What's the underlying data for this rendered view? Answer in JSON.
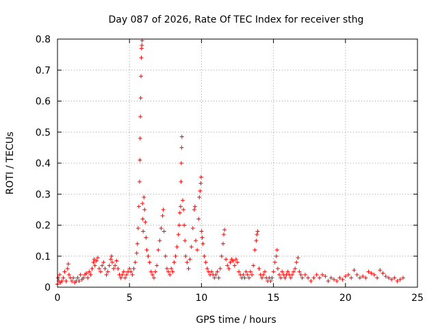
{
  "chart_data": {
    "type": "scatter",
    "title": "Day 087 of 2026, Rate Of TEC Index for receiver sthg",
    "xlabel": "GPS time / hours",
    "ylabel": "ROTI / TECUs",
    "xlim": [
      0,
      25
    ],
    "ylim": [
      0,
      0.8
    ],
    "xticks": [
      "0",
      "5",
      "10",
      "15",
      "20",
      "25"
    ],
    "yticks": [
      "0",
      "0.1",
      "0.2",
      "0.3",
      "0.4",
      "0.5",
      "0.6",
      "0.7",
      "0.8"
    ],
    "grid": true,
    "marker": "+",
    "color": "#ff0000",
    "series": [
      {
        "points": [
          [
            0.0,
            0.01
          ],
          [
            0.05,
            0.03
          ],
          [
            0.1,
            0.02
          ],
          [
            0.15,
            0.04
          ],
          [
            0.2,
            0.015
          ],
          [
            0.3,
            0.02
          ],
          [
            0.4,
            0.03
          ],
          [
            0.5,
            0.05
          ],
          [
            0.6,
            0.02
          ],
          [
            0.7,
            0.06
          ],
          [
            0.75,
            0.075
          ],
          [
            0.8,
            0.04
          ],
          [
            0.9,
            0.03
          ],
          [
            1.0,
            0.02
          ],
          [
            1.1,
            0.03
          ],
          [
            1.2,
            0.015
          ],
          [
            1.3,
            0.02
          ],
          [
            1.4,
            0.03
          ],
          [
            1.5,
            0.02
          ],
          [
            1.6,
            0.04
          ],
          [
            1.7,
            0.025
          ],
          [
            1.8,
            0.03
          ],
          [
            1.9,
            0.04
          ],
          [
            2.0,
            0.045
          ],
          [
            2.1,
            0.03
          ],
          [
            2.2,
            0.05
          ],
          [
            2.3,
            0.04
          ],
          [
            2.4,
            0.06
          ],
          [
            2.5,
            0.08
          ],
          [
            2.55,
            0.09
          ],
          [
            2.6,
            0.07
          ],
          [
            2.7,
            0.085
          ],
          [
            2.8,
            0.095
          ],
          [
            2.9,
            0.06
          ],
          [
            3.0,
            0.05
          ],
          [
            3.1,
            0.07
          ],
          [
            3.2,
            0.08
          ],
          [
            3.3,
            0.06
          ],
          [
            3.4,
            0.04
          ],
          [
            3.5,
            0.05
          ],
          [
            3.6,
            0.07
          ],
          [
            3.7,
            0.09
          ],
          [
            3.75,
            0.1
          ],
          [
            3.8,
            0.08
          ],
          [
            3.9,
            0.06
          ],
          [
            4.0,
            0.07
          ],
          [
            4.1,
            0.085
          ],
          [
            4.2,
            0.06
          ],
          [
            4.3,
            0.04
          ],
          [
            4.4,
            0.03
          ],
          [
            4.5,
            0.04
          ],
          [
            4.6,
            0.05
          ],
          [
            4.7,
            0.03
          ],
          [
            4.8,
            0.04
          ],
          [
            4.9,
            0.05
          ],
          [
            5.0,
            0.06
          ],
          [
            5.1,
            0.05
          ],
          [
            5.2,
            0.04
          ],
          [
            5.3,
            0.06
          ],
          [
            5.4,
            0.08
          ],
          [
            5.5,
            0.11
          ],
          [
            5.55,
            0.14
          ],
          [
            5.6,
            0.19
          ],
          [
            5.65,
            0.26
          ],
          [
            5.7,
            0.34
          ],
          [
            5.72,
            0.41
          ],
          [
            5.74,
            0.48
          ],
          [
            5.76,
            0.55
          ],
          [
            5.78,
            0.61
          ],
          [
            5.8,
            0.68
          ],
          [
            5.82,
            0.74
          ],
          [
            5.84,
            0.77
          ],
          [
            5.86,
            0.78
          ],
          [
            5.88,
            0.795
          ],
          [
            5.9,
            0.27
          ],
          [
            5.92,
            0.22
          ],
          [
            5.95,
            0.18
          ],
          [
            6.0,
            0.29
          ],
          [
            6.05,
            0.25
          ],
          [
            6.1,
            0.21
          ],
          [
            6.15,
            0.16
          ],
          [
            6.2,
            0.12
          ],
          [
            6.3,
            0.1
          ],
          [
            6.4,
            0.08
          ],
          [
            6.5,
            0.05
          ],
          [
            6.6,
            0.04
          ],
          [
            6.7,
            0.03
          ],
          [
            6.8,
            0.05
          ],
          [
            6.9,
            0.07
          ],
          [
            7.0,
            0.12
          ],
          [
            7.1,
            0.15
          ],
          [
            7.2,
            0.19
          ],
          [
            7.3,
            0.23
          ],
          [
            7.35,
            0.25
          ],
          [
            7.4,
            0.18
          ],
          [
            7.5,
            0.1
          ],
          [
            7.6,
            0.06
          ],
          [
            7.7,
            0.05
          ],
          [
            7.8,
            0.04
          ],
          [
            7.9,
            0.06
          ],
          [
            8.0,
            0.05
          ],
          [
            8.1,
            0.08
          ],
          [
            8.2,
            0.1
          ],
          [
            8.3,
            0.13
          ],
          [
            8.4,
            0.17
          ],
          [
            8.45,
            0.2
          ],
          [
            8.5,
            0.24
          ],
          [
            8.55,
            0.26
          ],
          [
            8.58,
            0.34
          ],
          [
            8.6,
            0.4
          ],
          [
            8.62,
            0.45
          ],
          [
            8.64,
            0.485
          ],
          [
            8.7,
            0.28
          ],
          [
            8.75,
            0.25
          ],
          [
            8.8,
            0.2
          ],
          [
            8.85,
            0.15
          ],
          [
            8.9,
            0.1
          ],
          [
            9.0,
            0.08
          ],
          [
            9.1,
            0.06
          ],
          [
            9.2,
            0.09
          ],
          [
            9.3,
            0.13
          ],
          [
            9.4,
            0.19
          ],
          [
            9.5,
            0.25
          ],
          [
            9.55,
            0.26
          ],
          [
            9.6,
            0.15
          ],
          [
            9.7,
            0.12
          ],
          [
            9.8,
            0.22
          ],
          [
            9.85,
            0.29
          ],
          [
            9.9,
            0.31
          ],
          [
            9.95,
            0.335
          ],
          [
            9.97,
            0.355
          ],
          [
            10.0,
            0.18
          ],
          [
            10.05,
            0.16
          ],
          [
            10.1,
            0.14
          ],
          [
            10.2,
            0.1
          ],
          [
            10.3,
            0.08
          ],
          [
            10.4,
            0.06
          ],
          [
            10.5,
            0.05
          ],
          [
            10.6,
            0.04
          ],
          [
            10.7,
            0.05
          ],
          [
            10.8,
            0.04
          ],
          [
            10.9,
            0.03
          ],
          [
            11.0,
            0.04
          ],
          [
            11.1,
            0.05
          ],
          [
            11.2,
            0.03
          ],
          [
            11.3,
            0.06
          ],
          [
            11.4,
            0.1
          ],
          [
            11.5,
            0.14
          ],
          [
            11.55,
            0.17
          ],
          [
            11.6,
            0.185
          ],
          [
            11.7,
            0.09
          ],
          [
            11.8,
            0.07
          ],
          [
            11.9,
            0.06
          ],
          [
            12.0,
            0.08
          ],
          [
            12.1,
            0.09
          ],
          [
            12.2,
            0.085
          ],
          [
            12.3,
            0.07
          ],
          [
            12.4,
            0.09
          ],
          [
            12.5,
            0.08
          ],
          [
            12.6,
            0.05
          ],
          [
            12.7,
            0.04
          ],
          [
            12.8,
            0.03
          ],
          [
            12.9,
            0.04
          ],
          [
            13.0,
            0.03
          ],
          [
            13.1,
            0.05
          ],
          [
            13.2,
            0.04
          ],
          [
            13.3,
            0.03
          ],
          [
            13.4,
            0.05
          ],
          [
            13.5,
            0.04
          ],
          [
            13.6,
            0.07
          ],
          [
            13.7,
            0.12
          ],
          [
            13.8,
            0.15
          ],
          [
            13.85,
            0.17
          ],
          [
            13.9,
            0.18
          ],
          [
            14.0,
            0.06
          ],
          [
            14.1,
            0.04
          ],
          [
            14.2,
            0.03
          ],
          [
            14.3,
            0.04
          ],
          [
            14.4,
            0.05
          ],
          [
            14.5,
            0.03
          ],
          [
            14.6,
            0.02
          ],
          [
            14.7,
            0.03
          ],
          [
            14.8,
            0.02
          ],
          [
            14.9,
            0.03
          ],
          [
            15.0,
            0.05
          ],
          [
            15.1,
            0.08
          ],
          [
            15.2,
            0.1
          ],
          [
            15.25,
            0.12
          ],
          [
            15.3,
            0.06
          ],
          [
            15.4,
            0.04
          ],
          [
            15.5,
            0.03
          ],
          [
            15.6,
            0.05
          ],
          [
            15.7,
            0.04
          ],
          [
            15.8,
            0.03
          ],
          [
            15.9,
            0.04
          ],
          [
            16.0,
            0.05
          ],
          [
            16.1,
            0.04
          ],
          [
            16.2,
            0.03
          ],
          [
            16.3,
            0.04
          ],
          [
            16.4,
            0.05
          ],
          [
            16.5,
            0.06
          ],
          [
            16.6,
            0.08
          ],
          [
            16.7,
            0.095
          ],
          [
            16.8,
            0.05
          ],
          [
            16.9,
            0.04
          ],
          [
            17.0,
            0.03
          ],
          [
            17.2,
            0.04
          ],
          [
            17.4,
            0.03
          ],
          [
            17.6,
            0.02
          ],
          [
            17.8,
            0.03
          ],
          [
            18.0,
            0.04
          ],
          [
            18.2,
            0.03
          ],
          [
            18.4,
            0.04
          ],
          [
            18.6,
            0.035
          ],
          [
            18.8,
            0.02
          ],
          [
            19.0,
            0.03
          ],
          [
            19.2,
            0.025
          ],
          [
            19.4,
            0.02
          ],
          [
            19.6,
            0.03
          ],
          [
            19.8,
            0.025
          ],
          [
            20.0,
            0.035
          ],
          [
            20.2,
            0.04
          ],
          [
            20.4,
            0.03
          ],
          [
            20.6,
            0.055
          ],
          [
            20.8,
            0.04
          ],
          [
            21.0,
            0.03
          ],
          [
            21.2,
            0.035
          ],
          [
            21.4,
            0.03
          ],
          [
            21.6,
            0.05
          ],
          [
            21.8,
            0.045
          ],
          [
            22.0,
            0.04
          ],
          [
            22.2,
            0.03
          ],
          [
            22.4,
            0.055
          ],
          [
            22.6,
            0.045
          ],
          [
            22.8,
            0.035
          ],
          [
            23.0,
            0.03
          ],
          [
            23.2,
            0.025
          ],
          [
            23.4,
            0.03
          ],
          [
            23.6,
            0.02
          ],
          [
            23.8,
            0.025
          ],
          [
            24.0,
            0.03
          ]
        ]
      }
    ]
  }
}
